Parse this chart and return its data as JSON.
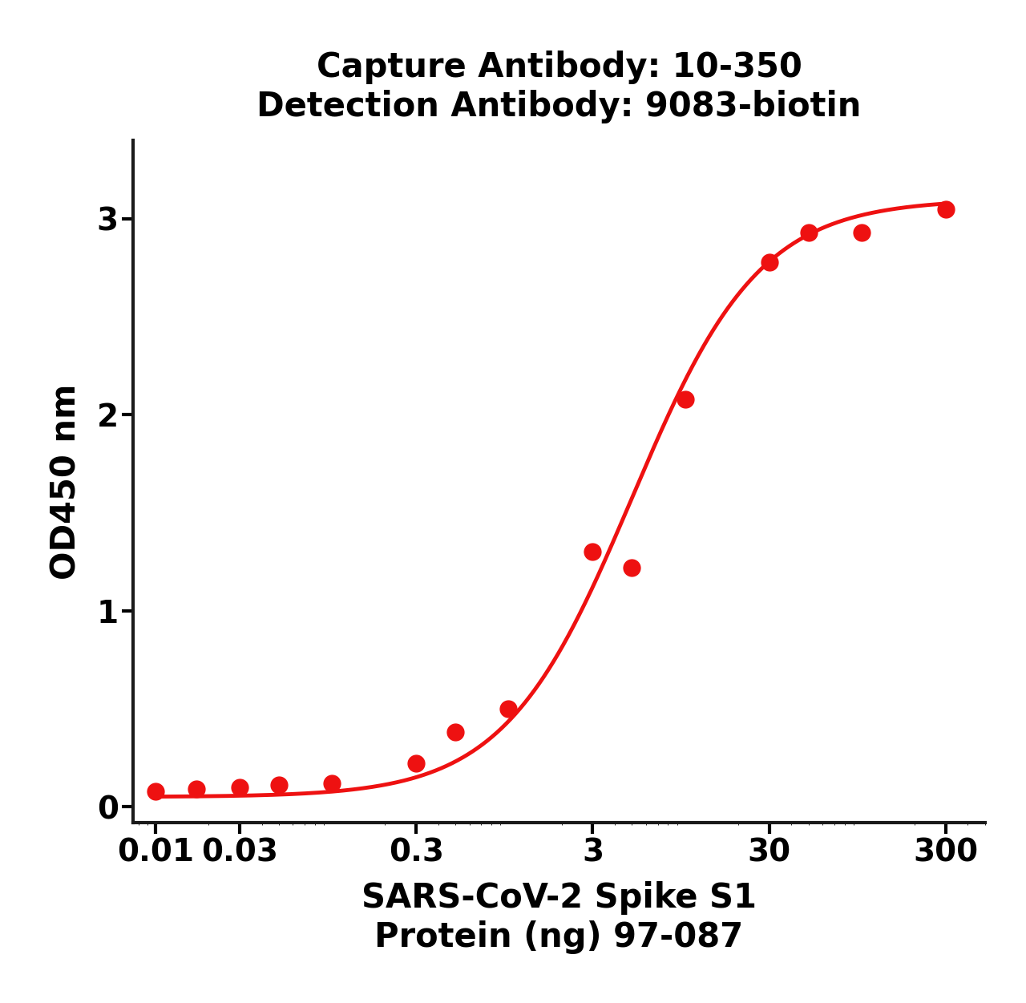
{
  "title_line1": "Capture Antibody: 10-350",
  "title_line2": "Detection Antibody: 9083-biotin",
  "xlabel_line1": "SARS-CoV-2 Spike S1",
  "xlabel_line2": "Protein (ng) 97-087",
  "ylabel": "OD450 nm",
  "x_data": [
    0.01,
    0.017,
    0.03,
    0.05,
    0.1,
    0.3,
    0.5,
    1.0,
    3.0,
    5.0,
    10.0,
    30.0,
    50.0,
    100.0,
    300.0
  ],
  "y_data": [
    0.08,
    0.09,
    0.1,
    0.11,
    0.12,
    0.22,
    0.38,
    0.5,
    1.3,
    1.22,
    2.08,
    2.78,
    2.93,
    2.93,
    3.05
  ],
  "line_color": "#EE1111",
  "marker_color": "#EE1111",
  "marker_size": 15,
  "line_width": 3.5,
  "ylim": [
    -0.08,
    3.4
  ],
  "yticks": [
    0,
    1,
    2,
    3
  ],
  "xtick_labels": [
    "0.01",
    "0.03",
    "0.3",
    "3",
    "30",
    "300"
  ],
  "xtick_positions": [
    0.01,
    0.03,
    0.3,
    3.0,
    30.0,
    300.0
  ],
  "background_color": "#ffffff",
  "title_fontsize": 30,
  "axis_label_fontsize": 30,
  "tick_fontsize": 28,
  "tick_label_fontweight": "bold",
  "title_fontweight": "bold",
  "axis_label_fontweight": "bold"
}
